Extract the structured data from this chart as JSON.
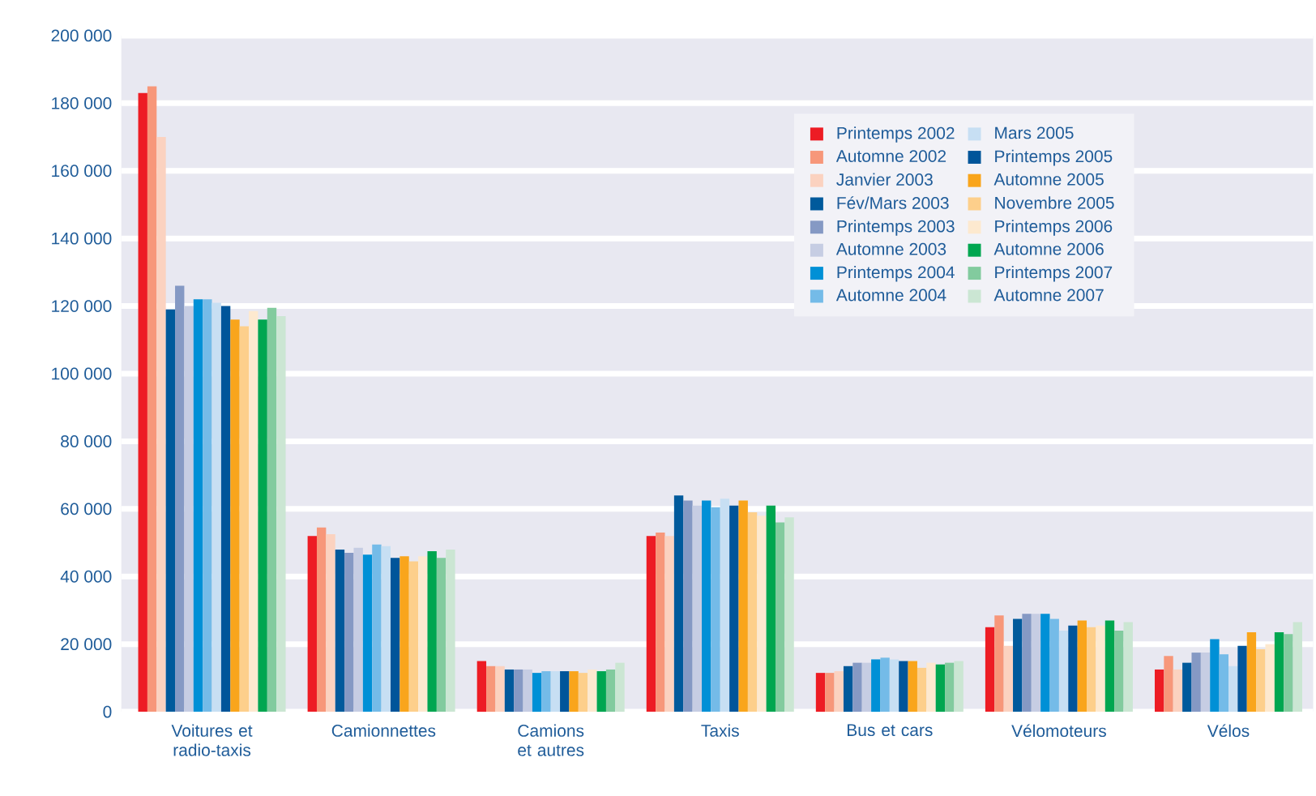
{
  "chart_data": {
    "type": "bar",
    "categories": [
      "Voitures et radio-taxis",
      "Camionnettes",
      "Camions et autres",
      "Taxis",
      "Bus et cars",
      "Vélomoteurs",
      "Vélos"
    ],
    "ylim": [
      0,
      200000
    ],
    "yticks": [
      {
        "value": 0,
        "label": "0"
      },
      {
        "value": 20000,
        "label": "20 000"
      },
      {
        "value": 40000,
        "label": "40 000"
      },
      {
        "value": 60000,
        "label": "60 000"
      },
      {
        "value": 80000,
        "label": "80 000"
      },
      {
        "value": 100000,
        "label": "100 000"
      },
      {
        "value": 120000,
        "label": "120 000"
      },
      {
        "value": 140000,
        "label": "140 000"
      },
      {
        "value": 160000,
        "label": "160 000"
      },
      {
        "value": 180000,
        "label": "180 000"
      },
      {
        "value": 200000,
        "label": "200 000"
      }
    ],
    "grid": "y",
    "legend": "top right",
    "series": [
      {
        "name": "Printemps 2002",
        "color": "#ed1c24",
        "values": [
          183000,
          52000,
          15000,
          52000,
          11500,
          25000,
          12500
        ]
      },
      {
        "name": "Automne 2002",
        "color": "#f7977a",
        "values": [
          185000,
          54500,
          13500,
          53000,
          11500,
          28500,
          16500
        ]
      },
      {
        "name": "Janvier 2003",
        "color": "#fbd2c0",
        "values": [
          170000,
          52500,
          13500,
          52000,
          12000,
          19500,
          12500
        ]
      },
      {
        "name": "Fév/Mars 2003",
        "color": "#005a9c",
        "values": [
          119000,
          48000,
          12500,
          64000,
          13500,
          27500,
          14500
        ]
      },
      {
        "name": "Printemps 2003",
        "color": "#8599c4",
        "values": [
          126000,
          47000,
          12500,
          62500,
          14500,
          29000,
          17500
        ]
      },
      {
        "name": "Automne 2003",
        "color": "#c6cde3",
        "values": [
          120000,
          48500,
          12500,
          61000,
          14500,
          29000,
          17500
        ]
      },
      {
        "name": "Printemps 2004",
        "color": "#0090d6",
        "values": [
          122000,
          46500,
          11500,
          62500,
          15500,
          29000,
          21500
        ]
      },
      {
        "name": "Automne 2004",
        "color": "#74bbe8",
        "values": [
          122000,
          49500,
          12000,
          60500,
          16000,
          27500,
          17000
        ]
      },
      {
        "name": "Mars 2005",
        "color": "#c7dff3",
        "values": [
          121000,
          49000,
          12000,
          63000,
          15500,
          24000,
          13500
        ]
      },
      {
        "name": "Printemps 2005",
        "color": "#00559a",
        "values": [
          120000,
          45500,
          12000,
          61000,
          15000,
          25500,
          19500
        ]
      },
      {
        "name": "Automne 2005",
        "color": "#f9a51c",
        "values": [
          116000,
          46000,
          12000,
          62500,
          15000,
          27000,
          23500
        ]
      },
      {
        "name": "Novembre 2005",
        "color": "#fdcf8b",
        "values": [
          114000,
          44500,
          11500,
          59000,
          13000,
          25000,
          18500
        ]
      },
      {
        "name": "Printemps 2006",
        "color": "#fde9cf",
        "values": [
          118500,
          46000,
          12500,
          58000,
          14500,
          25500,
          20000
        ]
      },
      {
        "name": "Automne 2006",
        "color": "#00a650",
        "values": [
          116000,
          47500,
          12000,
          61000,
          14000,
          27000,
          23500
        ]
      },
      {
        "name": "Printemps 2007",
        "color": "#82cb9e",
        "values": [
          119500,
          45500,
          12500,
          56000,
          14500,
          24000,
          23000
        ]
      },
      {
        "name": "Automne 2007",
        "color": "#cbe6d3",
        "values": [
          117000,
          48000,
          14500,
          57500,
          15000,
          26500,
          26500
        ]
      }
    ]
  }
}
